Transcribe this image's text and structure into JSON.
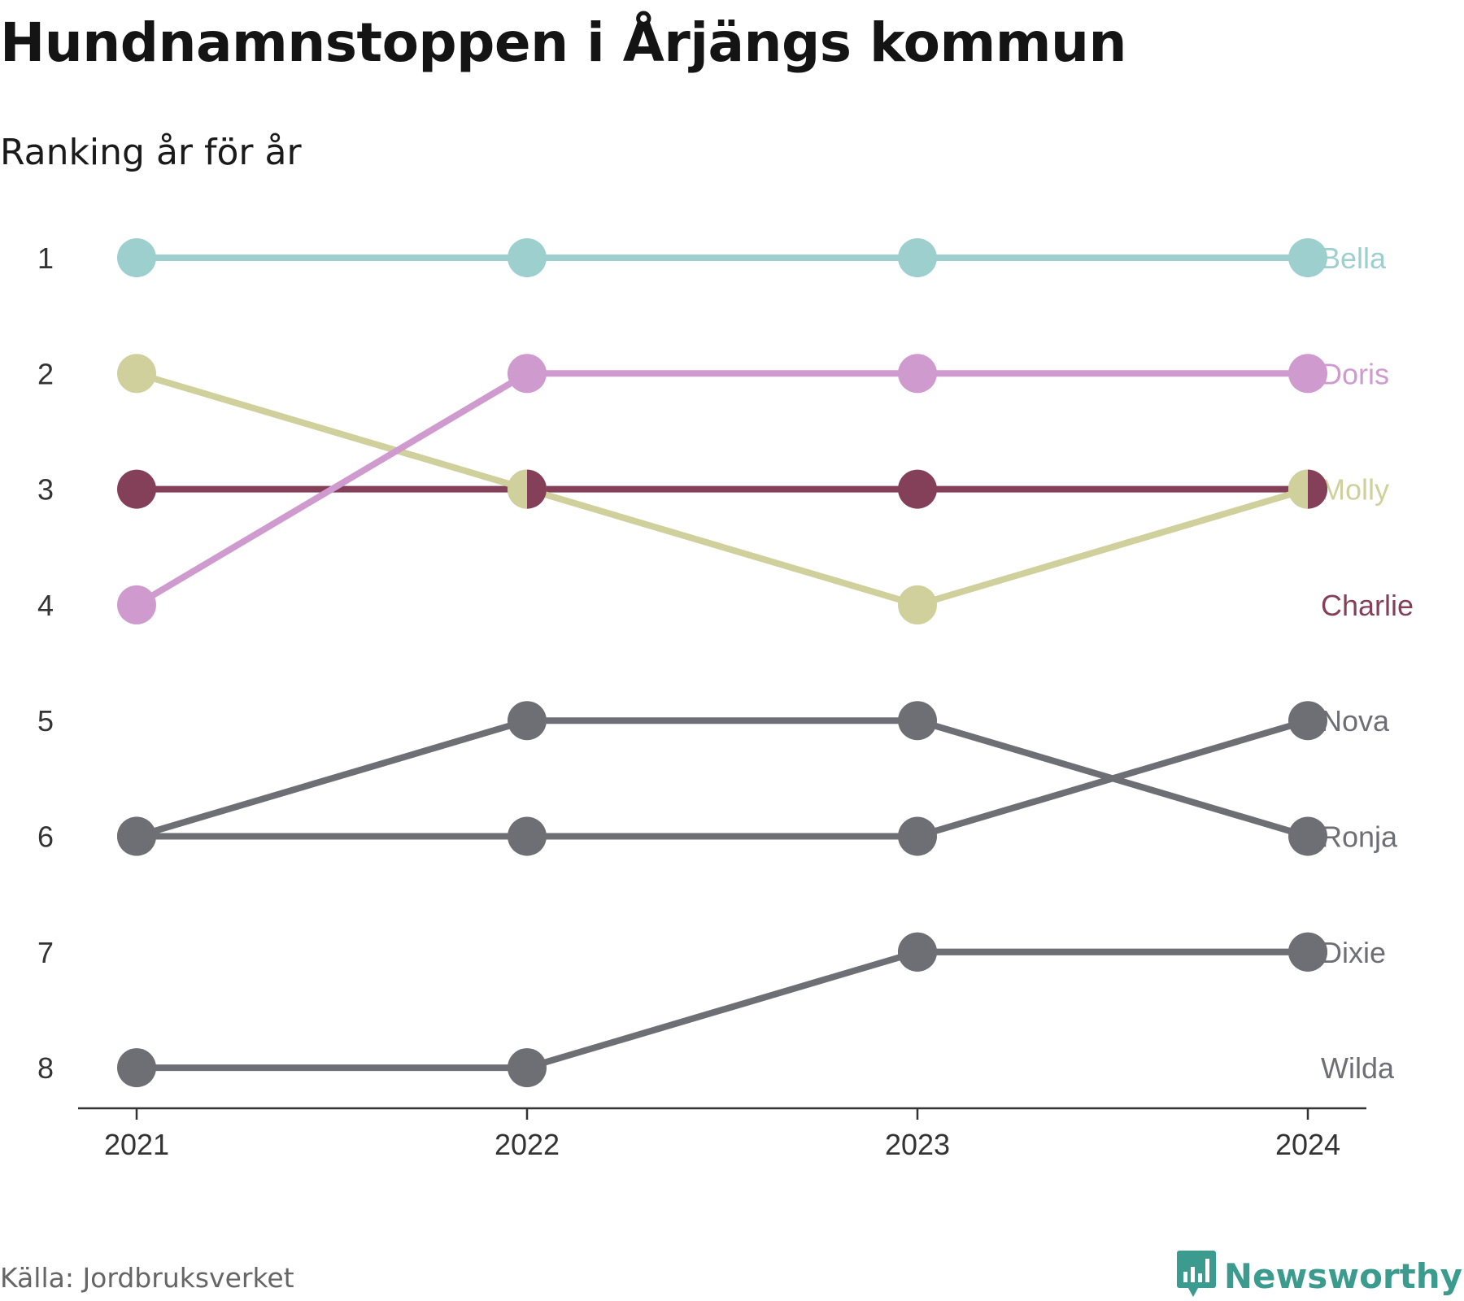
{
  "header": {
    "title": "Hundnamnstoppen i Årjängs kommun",
    "subtitle": "Ranking år för år"
  },
  "footer": {
    "source": "Källa: Jordbruksverket",
    "brand": "Newsworthy",
    "brand_icon": "newsworthy-logo-icon",
    "brand_color": "#3a9b8e"
  },
  "chart_data": {
    "type": "line",
    "subtype": "bump",
    "x": [
      "2021",
      "2022",
      "2023",
      "2024"
    ],
    "y_ticks": [
      1,
      2,
      3,
      4,
      5,
      6,
      7,
      8
    ],
    "y_reversed": true,
    "grid": false,
    "legend": "direct labels at right end",
    "series": [
      {
        "name": "Wilda",
        "ranks": [
          8,
          8,
          7,
          7
        ],
        "color": "#6e6e75",
        "label_rank": 8
      },
      {
        "name": "Ronja",
        "ranks": [
          6,
          5,
          5,
          6
        ],
        "color": "#6e6e75",
        "label_rank": 6
      },
      {
        "name": "Nova",
        "ranks": [
          6,
          6,
          6,
          5
        ],
        "color": "#6e6e75",
        "label_rank": 5
      },
      {
        "name": "Dixie",
        "ranks": [
          null,
          null,
          7,
          7
        ],
        "color": "#6e6e75",
        "label_rank": 7
      },
      {
        "name": "Charlie",
        "ranks": [
          3,
          3,
          3,
          3
        ],
        "color": "#844058",
        "label_rank": 4
      },
      {
        "name": "Molly",
        "ranks": [
          2,
          3,
          4,
          3
        ],
        "color": "#cfd09c",
        "label_rank": 3
      },
      {
        "name": "Doris",
        "ranks": [
          4,
          2,
          2,
          2
        ],
        "color": "#cf9bcf",
        "label_rank": 2
      },
      {
        "name": "Bella",
        "ranks": [
          1,
          1,
          1,
          1
        ],
        "color": "#9dcfcf",
        "label_rank": 1
      }
    ]
  }
}
